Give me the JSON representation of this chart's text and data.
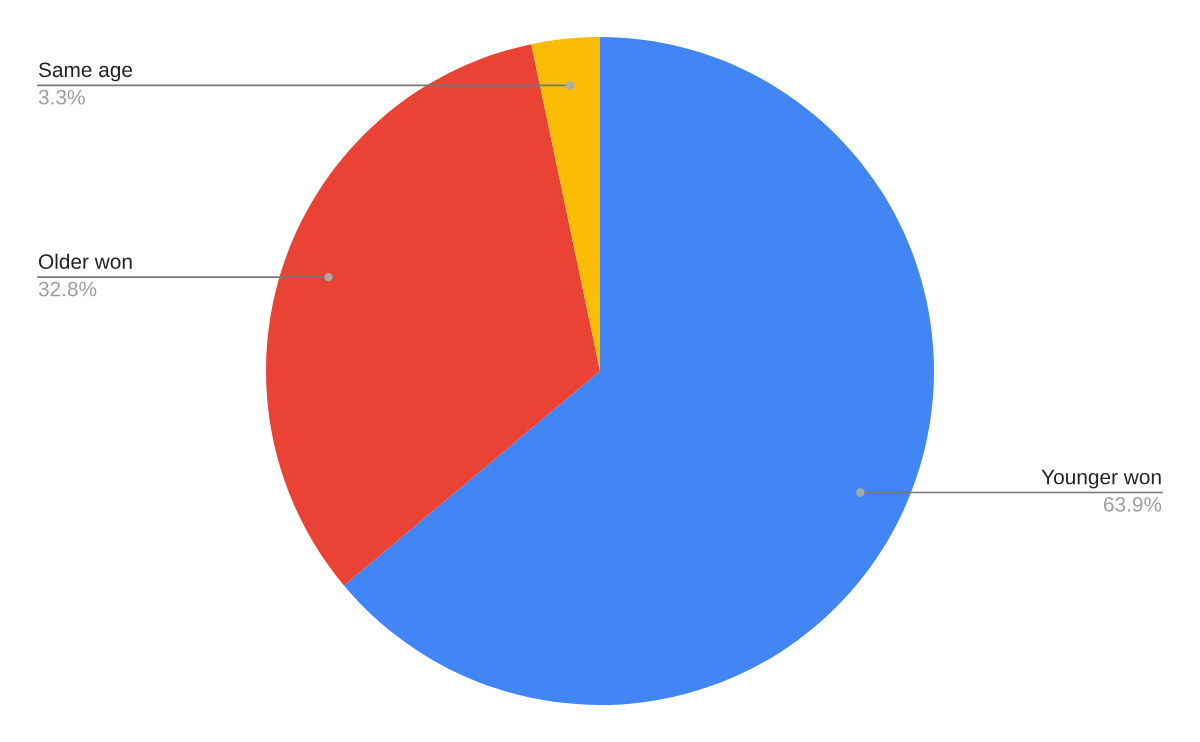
{
  "chart_data": {
    "type": "pie",
    "categories": [
      "Younger won",
      "Older won",
      "Same age"
    ],
    "values": [
      63.9,
      32.8,
      3.3
    ],
    "colors": [
      "#4285f4",
      "#ea4335",
      "#fbbc04"
    ],
    "value_labels": [
      "63.9%",
      "32.8%",
      "3.3%"
    ],
    "legend": false
  }
}
